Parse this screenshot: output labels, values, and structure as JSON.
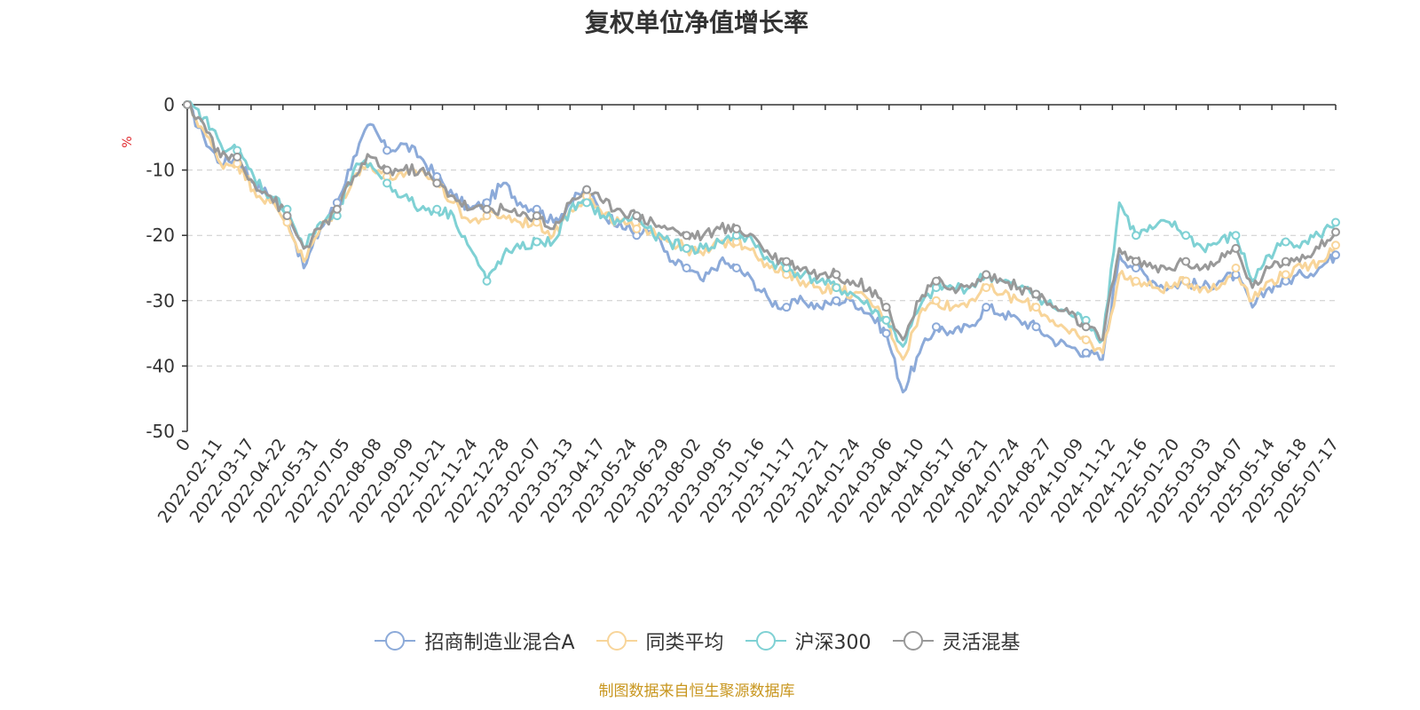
{
  "chart_data": {
    "type": "line",
    "title": "复权单位净值增长率",
    "ylabel": "%",
    "ylim": [
      -50,
      0
    ],
    "y_ticks": [
      "0",
      "-10",
      "-20",
      "-30",
      "-40",
      "-50"
    ],
    "x_ticks": [
      "0",
      "2022-02-11",
      "2022-03-17",
      "2022-04-22",
      "2022-05-31",
      "2022-07-05",
      "2022-08-08",
      "2022-09-09",
      "2022-10-21",
      "2022-11-24",
      "2022-12-28",
      "2023-02-07",
      "2023-03-13",
      "2023-04-17",
      "2023-05-24",
      "2023-06-29",
      "2023-08-02",
      "2023-09-05",
      "2023-10-16",
      "2023-11-17",
      "2023-12-21",
      "2024-01-24",
      "2024-03-06",
      "2024-04-10",
      "2024-05-17",
      "2024-06-21",
      "2024-07-24",
      "2024-08-27",
      "2024-10-09",
      "2024-11-12",
      "2024-12-16",
      "2025-01-20",
      "2025-03-03",
      "2025-04-07",
      "2025-05-14",
      "2025-06-18",
      "2025-07-17"
    ],
    "grid": true,
    "legend_position": "bottom",
    "series": [
      {
        "name": "招商制造业混合A",
        "color": "#8caad9",
        "values": [
          0,
          -5,
          -9,
          -8,
          -12,
          -14,
          -17,
          -25,
          -19,
          -15,
          -8,
          -3,
          -7,
          -6,
          -8,
          -11,
          -14,
          -16,
          -15,
          -12,
          -15,
          -16,
          -18,
          -15,
          -13,
          -17,
          -18,
          -20,
          -19,
          -24,
          -25,
          -27,
          -24,
          -25,
          -27,
          -30,
          -31,
          -30,
          -31,
          -30,
          -30,
          -32,
          -35,
          -44,
          -38,
          -34,
          -35,
          -34,
          -31,
          -32,
          -33,
          -34,
          -36,
          -37,
          -38,
          -39,
          -23,
          -25,
          -27,
          -28,
          -27,
          -28,
          -27,
          -26,
          -31,
          -28,
          -27,
          -26,
          -25,
          -23
        ]
      },
      {
        "name": "同类平均",
        "color": "#f8d59a",
        "values": [
          0,
          -4,
          -9,
          -9,
          -13,
          -15,
          -18,
          -24,
          -19,
          -16,
          -11,
          -9,
          -11,
          -11,
          -10,
          -12,
          -15,
          -18,
          -17,
          -17,
          -18,
          -18,
          -20,
          -16,
          -14,
          -17,
          -18,
          -19,
          -19,
          -21,
          -22,
          -23,
          -21,
          -21,
          -22,
          -25,
          -26,
          -27,
          -28,
          -28,
          -29,
          -30,
          -33,
          -39,
          -32,
          -30,
          -31,
          -30,
          -28,
          -29,
          -30,
          -31,
          -33,
          -35,
          -36,
          -38,
          -26,
          -27,
          -28,
          -28,
          -27,
          -28,
          -28,
          -25,
          -30,
          -27,
          -26,
          -25,
          -24,
          -21.5
        ]
      },
      {
        "name": "沪深300",
        "color": "#7fd1d4",
        "values": [
          0,
          -2,
          -6,
          -7,
          -11,
          -14,
          -16,
          -22,
          -18,
          -17,
          -10,
          -9,
          -12,
          -14,
          -16,
          -16,
          -17,
          -22,
          -27,
          -23,
          -22,
          -21,
          -21,
          -16,
          -15,
          -17,
          -18,
          -17,
          -20,
          -21,
          -22,
          -22,
          -21,
          -20,
          -21,
          -24,
          -25,
          -26,
          -27,
          -28,
          -29,
          -31,
          -33,
          -37,
          -31,
          -28,
          -28,
          -28,
          -26,
          -27,
          -28,
          -29,
          -31,
          -32,
          -33,
          -36,
          -15,
          -20,
          -19,
          -18,
          -20,
          -22,
          -21,
          -20,
          -27,
          -23,
          -21,
          -21,
          -20,
          -18
        ]
      },
      {
        "name": "灵活混基",
        "color": "#999999",
        "values": [
          0,
          -3,
          -8,
          -8,
          -12,
          -14,
          -17,
          -22,
          -19,
          -16,
          -11,
          -8,
          -10,
          -10,
          -10,
          -12,
          -14,
          -16,
          -16,
          -16,
          -17,
          -17,
          -19,
          -15,
          -13,
          -15,
          -16,
          -17,
          -18,
          -19,
          -20,
          -20,
          -19,
          -19,
          -20,
          -23,
          -24,
          -25,
          -26,
          -26,
          -27,
          -28,
          -31,
          -36,
          -30,
          -27,
          -28,
          -28,
          -26,
          -27,
          -28,
          -29,
          -31,
          -32,
          -34,
          -36,
          -22,
          -24,
          -25,
          -25,
          -24,
          -25,
          -24,
          -22,
          -28,
          -25,
          -24,
          -23,
          -22,
          -19.5
        ]
      }
    ],
    "source_note": "制图数据来自恒生聚源数据库"
  }
}
